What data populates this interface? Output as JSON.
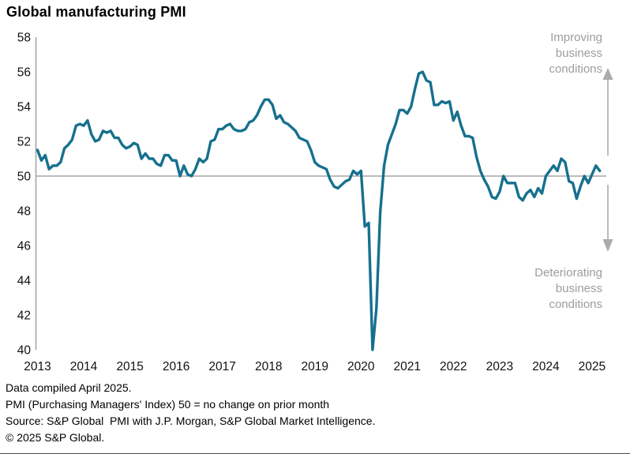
{
  "title": "Global manufacturing PMI",
  "colors": {
    "line": "#16708e",
    "axis": "#a5a5a5",
    "arrow": "#ababab",
    "annotation_text": "#9d9d9d",
    "tick_text": "#111111"
  },
  "footer": {
    "line1": "Data compiled April 2025.",
    "line2": "PMI (Purchasing Managers' Index) 50 = no change on prior month",
    "line3": "Source: S&P Global  PMI with J.P. Morgan, S&P Global Market Intelligence.",
    "line4": "© 2025 S&P Global."
  },
  "chart_data": {
    "type": "line",
    "title": "Global manufacturing PMI",
    "frequency": "monthly",
    "x_start": "2013-01",
    "x_end": "2025-03",
    "ylim": [
      40,
      58
    ],
    "y_ticks": [
      58,
      56,
      54,
      52,
      50,
      48,
      46,
      44,
      42,
      40
    ],
    "x_ticks": [
      2013,
      2014,
      2015,
      2016,
      2017,
      2018,
      2019,
      2020,
      2021,
      2022,
      2023,
      2024,
      2025
    ],
    "reference_line": 50,
    "grid": false,
    "legend": false,
    "annotations": {
      "improving": "Improving\nbusiness\nconditions",
      "deteriorating": "Deteriorating\nbusiness\nconditions"
    },
    "series": [
      {
        "name": "Global manufacturing PMI",
        "values": [
          51.5,
          50.9,
          51.2,
          50.4,
          50.6,
          50.6,
          50.8,
          51.6,
          51.8,
          52.1,
          52.9,
          53.0,
          52.9,
          53.2,
          52.4,
          52.0,
          52.1,
          52.6,
          52.5,
          52.6,
          52.2,
          52.2,
          51.8,
          51.6,
          51.7,
          51.9,
          51.8,
          51.0,
          51.3,
          51.0,
          51.0,
          50.7,
          50.6,
          51.2,
          51.2,
          50.9,
          50.9,
          50.0,
          50.6,
          50.1,
          50.0,
          50.4,
          51.0,
          50.8,
          51.0,
          52.0,
          52.1,
          52.7,
          52.7,
          52.9,
          53.0,
          52.7,
          52.6,
          52.6,
          52.7,
          53.1,
          53.2,
          53.5,
          54.0,
          54.4,
          54.4,
          54.1,
          53.3,
          53.5,
          53.1,
          53.0,
          52.8,
          52.6,
          52.2,
          52.1,
          52.0,
          51.5,
          50.8,
          50.6,
          50.5,
          50.4,
          49.8,
          49.4,
          49.3,
          49.5,
          49.7,
          49.8,
          50.3,
          50.1,
          50.3,
          47.1,
          47.3,
          39.6,
          42.4,
          47.9,
          50.6,
          51.8,
          52.4,
          53.0,
          53.8,
          53.8,
          53.6,
          54.0,
          55.0,
          55.9,
          56.0,
          55.5,
          55.4,
          54.1,
          54.1,
          54.3,
          54.2,
          54.3,
          53.2,
          53.7,
          52.9,
          52.3,
          52.3,
          52.2,
          51.1,
          50.3,
          49.8,
          49.4,
          48.8,
          48.7,
          49.1,
          50.0,
          49.6,
          49.6,
          49.6,
          48.8,
          48.6,
          49.0,
          49.2,
          48.8,
          49.3,
          49.0,
          50.0,
          50.3,
          50.6,
          50.3,
          51.0,
          50.8,
          49.7,
          49.6,
          48.7,
          49.4,
          50.0,
          49.6,
          50.1,
          50.6,
          50.3
        ]
      }
    ]
  }
}
